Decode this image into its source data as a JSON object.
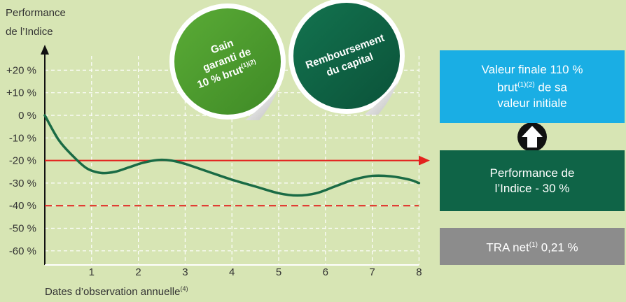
{
  "chart_data": {
    "type": "line",
    "ylabel_line1": "Performance",
    "ylabel_line2": "de l’Indice",
    "xlabel": "Dates d’observation annuelle",
    "xlabel_sup": "(4)",
    "x_ticks": [
      "1",
      "2",
      "3",
      "4",
      "5",
      "6",
      "7",
      "8"
    ],
    "y_ticks": [
      "+20 %",
      "+10 %",
      "0 %",
      "-10 %",
      "-20 %",
      "-30 %",
      "-40 %",
      "-50 %",
      "-60 %"
    ],
    "y_tick_values": [
      20,
      10,
      0,
      -10,
      -20,
      -30,
      -40,
      -50,
      -60
    ],
    "xlim": [
      0,
      8
    ],
    "ylim": [
      -60,
      20
    ],
    "grid": true,
    "series": [
      {
        "color": "#1a6b45",
        "x": [
          0,
          0.3,
          0.6,
          0.9,
          1.2,
          1.5,
          1.8,
          2.1,
          2.4,
          2.7,
          3.0,
          3.5,
          4.0,
          4.5,
          5.0,
          5.4,
          5.8,
          6.2,
          6.6,
          7.0,
          7.4,
          7.8,
          8.0
        ],
        "y": [
          0,
          -11,
          -18,
          -23.5,
          -25.5,
          -25,
          -23,
          -21,
          -19.8,
          -20,
          -21.5,
          -25,
          -28.5,
          -31.5,
          -34.5,
          -35.5,
          -34.5,
          -31.5,
          -28.5,
          -26.8,
          -27,
          -28.5,
          -30
        ]
      }
    ],
    "ref_lines": [
      {
        "y": -20,
        "style": "solid",
        "color": "#e3231e"
      },
      {
        "y": -40,
        "style": "dashed",
        "color": "#e3231e"
      }
    ],
    "stickers": [
      {
        "lines": [
          "Gain",
          "garanti de",
          "10 % brut"
        ],
        "sup": "(1)(2)",
        "color": "#4e9a2f"
      },
      {
        "lines": [
          "Remboursement",
          "du capital"
        ],
        "color": "#0f6447"
      }
    ]
  },
  "boxes": {
    "final": {
      "line1": "Valeur finale 110 %",
      "line2_sup": "(1)(2)",
      "line2_pre": "brut",
      "line2_post": " de sa",
      "line3": "valeur initiale"
    },
    "perf": {
      "line1": "Performance de",
      "line2": "l’Indice - 30 %"
    },
    "tra": {
      "pre": "TRA net",
      "sup": "(1)",
      "post": " 0,21 %"
    }
  },
  "colors": {
    "background": "#d7e5b4",
    "line": "#1a6b45",
    "threshold": "#e3231e",
    "arrow_up": "#ffffff"
  }
}
